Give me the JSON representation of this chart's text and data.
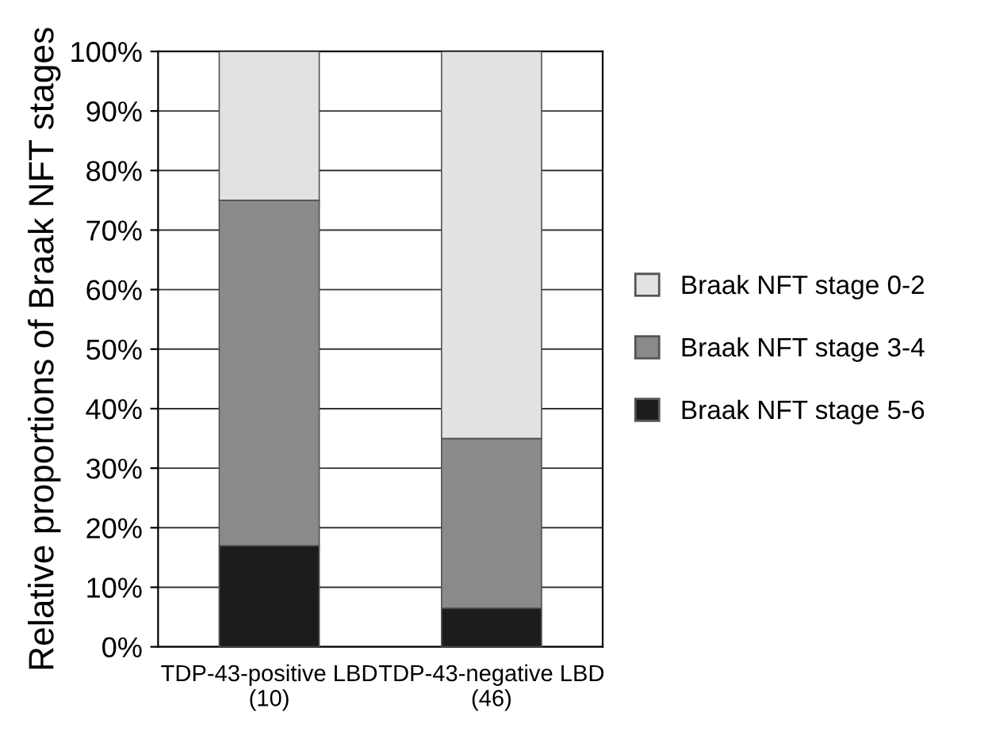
{
  "chart_data": {
    "type": "bar",
    "stacked": true,
    "ylabel": "Relative proportions of Braak NFT stages",
    "categories": [
      "TDP-43-positive LBD\n(10)",
      "TDP-43-negative LBD\n(46)"
    ],
    "series": [
      {
        "name": "Braak NFT stage 5-6",
        "color": "#1c1c1c",
        "values": [
          17,
          6.5
        ]
      },
      {
        "name": "Braak NFT stage 3-4",
        "color": "#8a8a8a",
        "values": [
          58,
          28.5
        ]
      },
      {
        "name": "Braak NFT stage 0-2",
        "color": "#e2e2e2",
        "values": [
          25,
          65
        ]
      }
    ],
    "ylim": [
      0,
      100
    ],
    "yticks": [
      {
        "value": 0,
        "label": "0%"
      },
      {
        "value": 10,
        "label": "10%"
      },
      {
        "value": 20,
        "label": "20%"
      },
      {
        "value": 30,
        "label": "30%"
      },
      {
        "value": 40,
        "label": "40%"
      },
      {
        "value": 50,
        "label": "50%"
      },
      {
        "value": 60,
        "label": "60%"
      },
      {
        "value": 70,
        "label": "70%"
      },
      {
        "value": 80,
        "label": "80%"
      },
      {
        "value": 90,
        "label": "90%"
      },
      {
        "value": 100,
        "label": "100%"
      }
    ],
    "grid": "y",
    "legend": "right"
  }
}
